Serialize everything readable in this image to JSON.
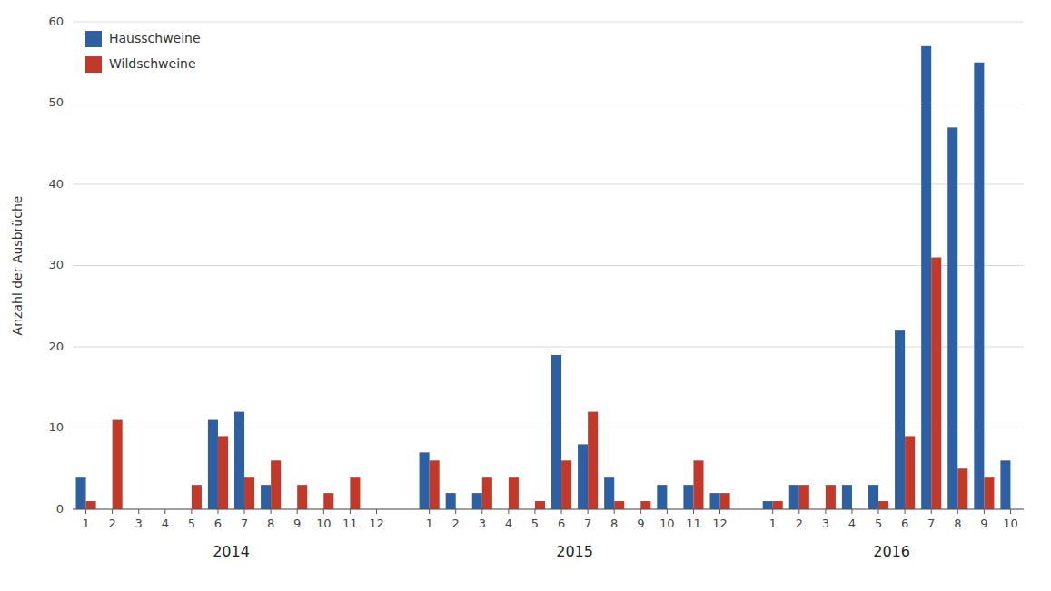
{
  "chart_data": {
    "type": "bar",
    "ylabel": "Anzahl der Ausbrüche",
    "categories": [
      "1",
      "2",
      "3",
      "4",
      "5",
      "6",
      "7",
      "8",
      "9",
      "10",
      "11",
      "12",
      "1",
      "2",
      "3",
      "4",
      "5",
      "6",
      "7",
      "8",
      "9",
      "10",
      "11",
      "12",
      "1",
      "2",
      "3",
      "4",
      "5",
      "6",
      "7",
      "8",
      "9",
      "10"
    ],
    "groups": [
      {
        "label": "2014",
        "size": 12
      },
      {
        "label": "2015",
        "size": 12
      },
      {
        "label": "2016",
        "size": 10
      }
    ],
    "series": [
      {
        "name": "Hausschweine",
        "color": "#2E5FA3",
        "values": [
          4,
          0,
          0,
          0,
          0,
          11,
          12,
          3,
          0,
          0,
          0,
          0,
          7,
          2,
          2,
          0,
          0,
          19,
          8,
          4,
          0,
          3,
          3,
          2,
          1,
          3,
          0,
          3,
          3,
          22,
          57,
          47,
          55,
          6
        ]
      },
      {
        "name": "Wildschweine",
        "color": "#C0392B",
        "values": [
          1,
          11,
          0,
          0,
          3,
          9,
          4,
          6,
          3,
          2,
          4,
          0,
          6,
          0,
          4,
          4,
          1,
          6,
          12,
          1,
          1,
          0,
          6,
          2,
          1,
          3,
          3,
          0,
          1,
          9,
          31,
          5,
          4,
          0
        ]
      }
    ],
    "ylim": [
      0,
      60
    ],
    "yticks": [
      0,
      10,
      20,
      30,
      40,
      50,
      60
    ],
    "grid": true,
    "legend": "upper left"
  }
}
